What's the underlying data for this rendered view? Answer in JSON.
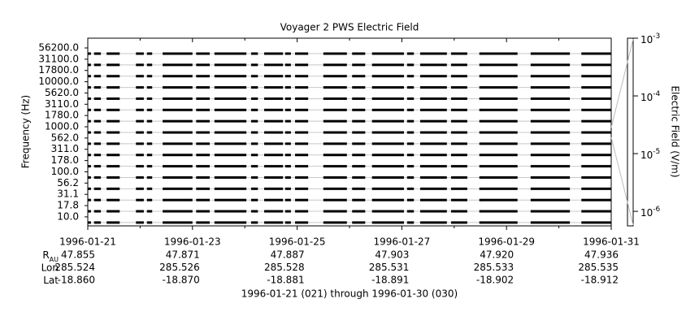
{
  "chart_data": {
    "type": "channel-strip",
    "title": "Voyager 2 PWS Electric Field",
    "y_label": "Frequency (Hz)",
    "categories": [
      "56200.0",
      "31100.0",
      "17800.0",
      "10000.0",
      "5620.0",
      "3110.0",
      "1780.0",
      "1000.0",
      "562.0",
      "311.0",
      "178.0",
      "100.0",
      "56.2",
      "31.1",
      "17.8",
      "10.0"
    ],
    "coverage": [
      [
        0.0,
        0.06
      ],
      [
        0.12,
        0.25
      ],
      [
        0.36,
        0.61
      ],
      [
        0.92,
        1.07
      ],
      [
        1.13,
        1.23
      ],
      [
        1.43,
        2.0
      ],
      [
        2.07,
        2.33
      ],
      [
        2.42,
        3.03
      ],
      [
        3.12,
        3.25
      ],
      [
        3.37,
        3.73
      ],
      [
        3.77,
        3.88
      ],
      [
        3.96,
        4.21
      ],
      [
        4.5,
        4.95
      ],
      [
        5.05,
        5.3
      ],
      [
        5.43,
        6.04
      ],
      [
        6.1,
        6.23
      ],
      [
        6.35,
        6.86
      ],
      [
        6.94,
        7.25
      ],
      [
        7.48,
        8.21
      ],
      [
        8.46,
        9.21
      ],
      [
        9.43,
        10.0
      ]
    ],
    "color": "#000000",
    "xlim": [
      0,
      10
    ],
    "xticks": [
      {
        "value": 0,
        "label": "1996-01-21"
      },
      {
        "value": 2,
        "label": "1996-01-23"
      },
      {
        "value": 4,
        "label": "1996-01-25"
      },
      {
        "value": 6,
        "label": "1996-01-27"
      },
      {
        "value": 8,
        "label": "1996-01-29"
      },
      {
        "value": 10,
        "label": "1996-01-31"
      }
    ],
    "xminorticks": [
      1,
      3,
      5,
      7,
      9
    ],
    "grid": true,
    "colorbar_label": "Electric Field (V/m)",
    "y2lim": [
      5.6e-07,
      0.001
    ],
    "y2ticks": [
      {
        "value": 0.001,
        "label": "10",
        "exponent": "-3"
      },
      {
        "value": 0.0001,
        "label": "10",
        "exponent": "-4"
      },
      {
        "value": 1e-05,
        "label": "10",
        "exponent": "-5"
      },
      {
        "value": 1e-06,
        "label": "10",
        "exponent": "-6"
      }
    ],
    "y2scale": "log",
    "ephemeris": [
      {
        "label": "R",
        "subscript": "AU",
        "values": [
          "47.855",
          "47.871",
          "47.887",
          "47.903",
          "47.920",
          "47.936"
        ]
      },
      {
        "label": "Lon",
        "values": [
          "285.524",
          "285.526",
          "285.528",
          "285.531",
          "285.533",
          "285.535"
        ]
      },
      {
        "label": "Lat",
        "values": [
          "-18.860",
          "-18.870",
          "-18.881",
          "-18.891",
          "-18.902",
          "-18.912"
        ]
      }
    ],
    "footer": "1996-01-21 (021) through 1996-01-30 (030)"
  }
}
